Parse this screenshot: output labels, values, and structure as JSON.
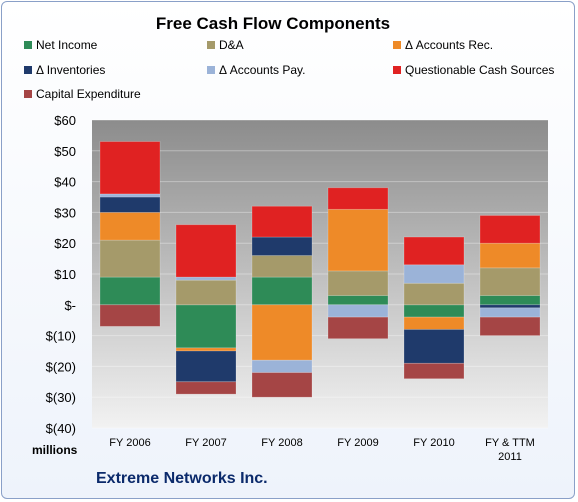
{
  "chart_data": {
    "type": "bar",
    "stacked": true,
    "title": "Free Cash Flow Components",
    "units_label": "millions",
    "company": "Extreme Networks Inc.",
    "categories": [
      "FY 2006",
      "FY 2007",
      "FY 2008",
      "FY 2009",
      "FY 2010",
      "FY & TTM 2011"
    ],
    "y_ticks": [
      "$60",
      "$50",
      "$40",
      "$30",
      "$20",
      "$10",
      "$-",
      "$(10)",
      "$(20)",
      "$(30)",
      "$(40)"
    ],
    "ylim": [
      -40,
      60
    ],
    "legend_position": "top",
    "series": [
      {
        "name": "Net Income",
        "color": "#2e8b57",
        "values": [
          9,
          -14,
          9,
          3,
          -4,
          3
        ]
      },
      {
        "name": "D&A",
        "color": "#a59a6a",
        "values": [
          12,
          8,
          7,
          8,
          7,
          9
        ]
      },
      {
        "name": "Δ Accounts Rec.",
        "color": "#ee8a28",
        "values": [
          9,
          -1,
          -18,
          20,
          -4,
          8
        ]
      },
      {
        "name": "Δ Inventories",
        "color": "#1f3a6b",
        "values": [
          5,
          -10,
          6,
          0,
          -11,
          -1
        ]
      },
      {
        "name": "Δ Accounts Pay.",
        "color": "#9bb3d8",
        "values": [
          1,
          1,
          -4,
          -4,
          6,
          -3
        ]
      },
      {
        "name": "Questionable Cash Sources",
        "color": "#e02222",
        "values": [
          17,
          17,
          10,
          7,
          9,
          9
        ]
      },
      {
        "name": "Capital Expenditure",
        "color": "#a54545",
        "values": [
          -7,
          -4,
          -8,
          -7,
          -5,
          -6
        ]
      }
    ]
  }
}
